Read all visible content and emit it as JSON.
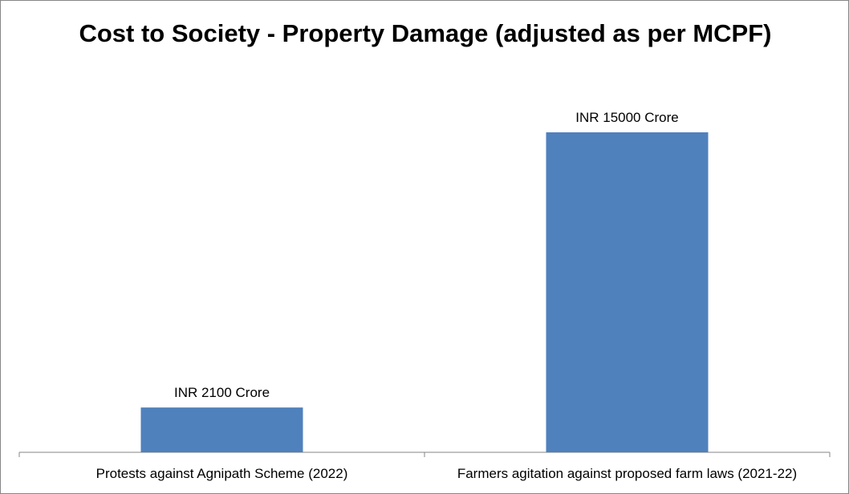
{
  "chart_data": {
    "type": "bar",
    "title": "Cost to Society -  Property Damage (adjusted as per MCPF)",
    "categories": [
      "Protests against Agnipath Scheme (2022)",
      "Farmers agitation against proposed farm laws (2021-22)"
    ],
    "values": [
      2100,
      15000
    ],
    "data_labels": [
      "INR 2100 Crore",
      "INR 15000 Crore"
    ],
    "ylim": [
      0,
      17000
    ],
    "grid": false,
    "legend": "none",
    "bar_color": "#4F81BD",
    "axis_color": "#868686"
  }
}
